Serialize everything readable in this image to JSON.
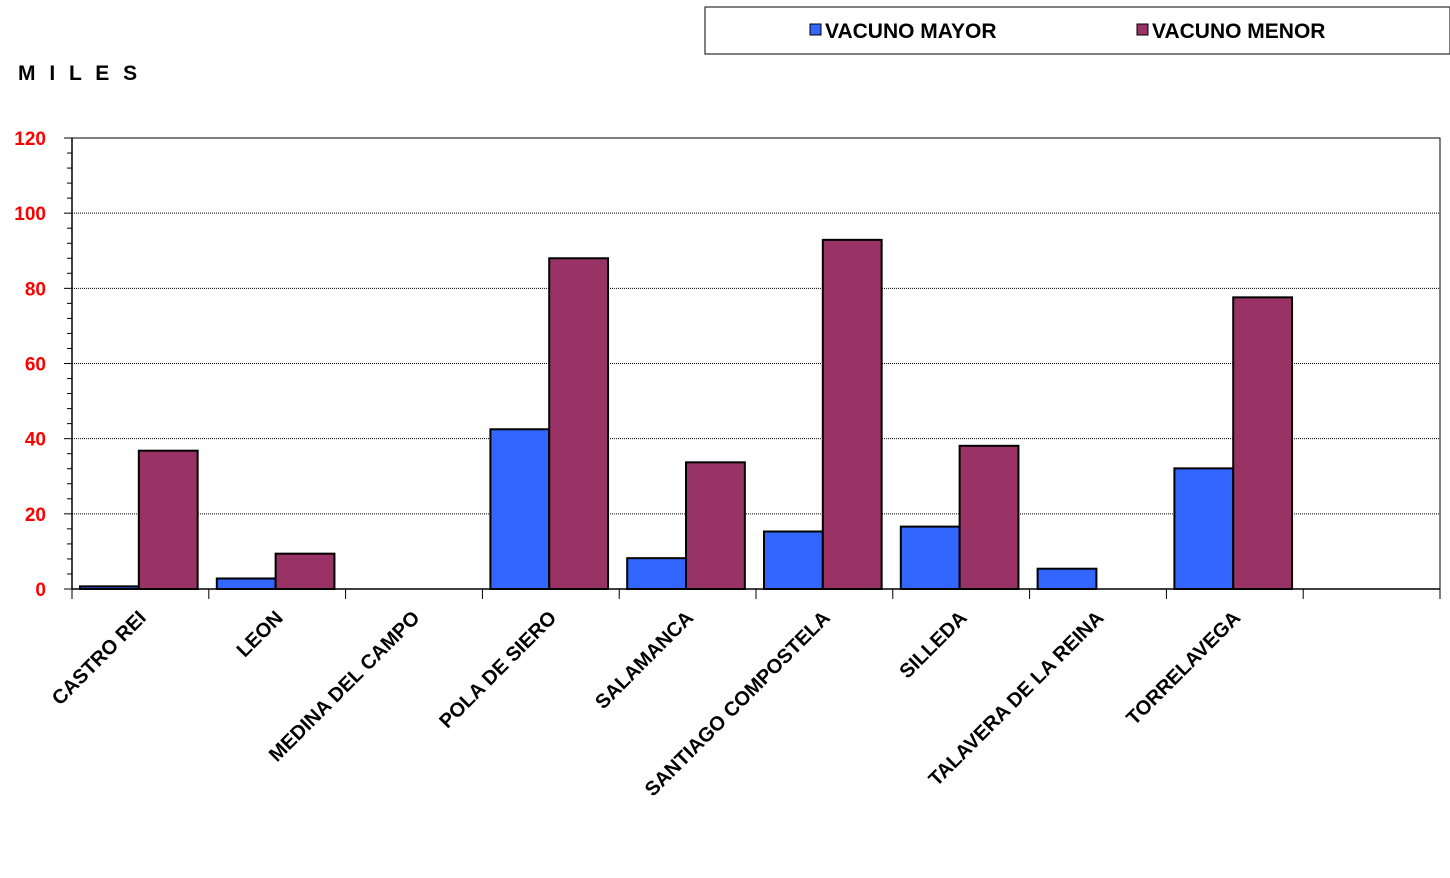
{
  "chart_data": {
    "type": "bar",
    "unit_label": "M I L E S",
    "categories": [
      "CASTRO REI",
      "LEON",
      "MEDINA DEL CAMPO",
      "POLA DE SIERO",
      "SALAMANCA",
      "SANTIAGO COMPOSTELA",
      "SILLEDA",
      "TALAVERA DE LA REINA",
      "TORRELAVEGA",
      ""
    ],
    "series": [
      {
        "name": "VACUNO MAYOR",
        "color": "#3366ff",
        "values": [
          0.7,
          2.8,
          0,
          42.5,
          8.2,
          15.3,
          16.6,
          5.4,
          32.1,
          0
        ]
      },
      {
        "name": "VACUNO MENOR",
        "color": "#993366",
        "values": [
          36.8,
          9.4,
          0,
          88,
          33.7,
          92.9,
          38.1,
          0,
          77.6,
          0
        ]
      }
    ],
    "ylim": [
      0,
      120
    ],
    "yticks": [
      0,
      20,
      40,
      60,
      80,
      100,
      120
    ],
    "ytick_color": "#ff0000",
    "grid": true,
    "legend_position": "top-right"
  }
}
